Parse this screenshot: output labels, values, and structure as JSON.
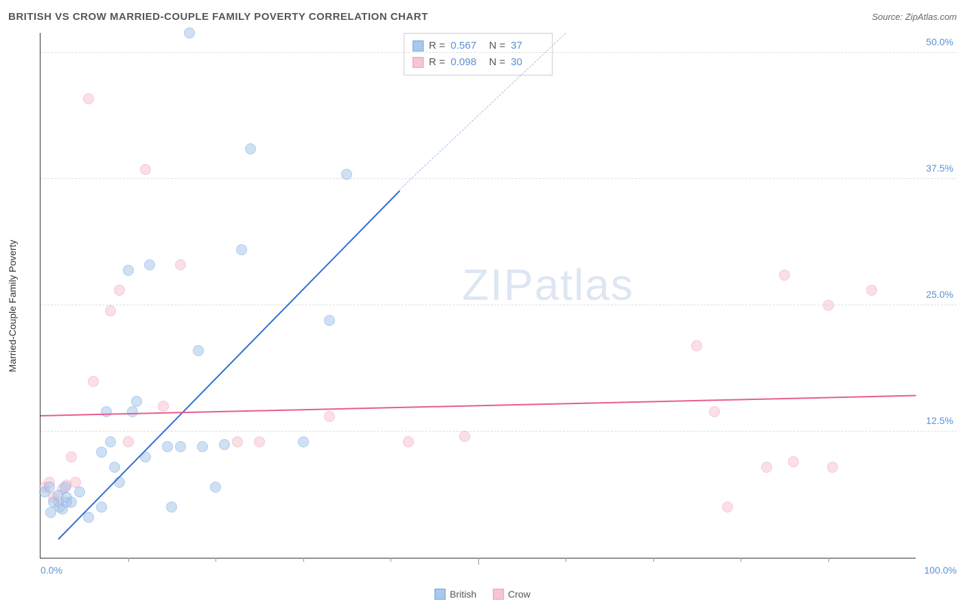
{
  "title": "BRITISH VS CROW MARRIED-COUPLE FAMILY POVERTY CORRELATION CHART",
  "source": "Source: ZipAtlas.com",
  "y_axis_label": "Married-Couple Family Poverty",
  "watermark": {
    "zip": "ZIP",
    "atlas": "atlas"
  },
  "chart": {
    "type": "scatter",
    "xlim": [
      0,
      100
    ],
    "ylim": [
      0,
      52
    ],
    "x_ticks_minor": [
      10,
      20,
      30,
      40,
      50,
      60,
      70,
      80,
      90
    ],
    "x_tick_labels": [
      {
        "pos": 0,
        "text": "0.0%",
        "align": "left"
      },
      {
        "pos": 100,
        "text": "100.0%",
        "align": "right"
      }
    ],
    "y_ticks": [
      {
        "pos": 12.5,
        "text": "12.5%"
      },
      {
        "pos": 25.0,
        "text": "25.0%"
      },
      {
        "pos": 37.5,
        "text": "37.5%"
      },
      {
        "pos": 50.0,
        "text": "50.0%"
      }
    ],
    "grid_color": "#dddddd",
    "axis_color": "#333333",
    "background_color": "#ffffff",
    "marker_radius": 8,
    "marker_opacity": 0.55,
    "series": [
      {
        "name": "British",
        "fill_color": "#a8c8ec",
        "stroke_color": "#6fa3de",
        "trend_color": "#2f6fd0",
        "trend_dash_color": "#9fbfe0",
        "r_label": "R =",
        "r_value": "0.567",
        "n_label": "N =",
        "n_value": "37",
        "trend": {
          "x1": 2,
          "y1": 2,
          "x2": 41,
          "y2": 36.5,
          "extend_x2": 60,
          "extend_y2": 52
        },
        "points": [
          [
            0.5,
            6.5
          ],
          [
            1,
            7
          ],
          [
            1.2,
            4.5
          ],
          [
            1.5,
            5.5
          ],
          [
            2,
            6.2
          ],
          [
            2.2,
            5
          ],
          [
            2.5,
            4.8
          ],
          [
            2.8,
            7
          ],
          [
            3,
            5.5
          ],
          [
            3,
            6
          ],
          [
            3.5,
            5.5
          ],
          [
            4.5,
            6.5
          ],
          [
            5.5,
            4
          ],
          [
            7,
            10.5
          ],
          [
            7.5,
            14.5
          ],
          [
            7,
            5
          ],
          [
            8,
            11.5
          ],
          [
            8.5,
            9
          ],
          [
            9,
            7.5
          ],
          [
            10,
            28.5
          ],
          [
            10.5,
            14.5
          ],
          [
            11,
            15.5
          ],
          [
            12,
            10
          ],
          [
            12.5,
            29
          ],
          [
            14.5,
            11
          ],
          [
            15,
            5
          ],
          [
            16,
            11
          ],
          [
            17,
            52
          ],
          [
            18,
            20.5
          ],
          [
            18.5,
            11
          ],
          [
            20,
            7
          ],
          [
            21,
            11.2
          ],
          [
            23,
            30.5
          ],
          [
            24,
            40.5
          ],
          [
            30,
            11.5
          ],
          [
            33,
            23.5
          ],
          [
            35,
            38
          ]
        ]
      },
      {
        "name": "Crow",
        "fill_color": "#f7c6d3",
        "stroke_color": "#ec9cb5",
        "trend_color": "#e75b8d",
        "r_label": "R =",
        "r_value": "0.098",
        "n_label": "N =",
        "n_value": "30",
        "trend": {
          "x1": 0,
          "y1": 14.2,
          "x2": 100,
          "y2": 16.2
        },
        "points": [
          [
            0.5,
            7
          ],
          [
            1,
            7.5
          ],
          [
            1.5,
            6
          ],
          [
            2,
            5.5
          ],
          [
            2.5,
            6.8
          ],
          [
            3,
            7.2
          ],
          [
            3.5,
            10
          ],
          [
            4,
            7.5
          ],
          [
            5.5,
            45.5
          ],
          [
            6,
            17.5
          ],
          [
            8,
            24.5
          ],
          [
            9,
            26.5
          ],
          [
            10,
            11.5
          ],
          [
            12,
            38.5
          ],
          [
            14,
            15
          ],
          [
            16,
            29
          ],
          [
            22.5,
            11.5
          ],
          [
            25,
            11.5
          ],
          [
            33,
            14
          ],
          [
            42,
            11.5
          ],
          [
            48.5,
            12
          ],
          [
            75,
            21
          ],
          [
            77,
            14.5
          ],
          [
            78.5,
            5
          ],
          [
            83,
            9
          ],
          [
            85,
            28
          ],
          [
            86,
            9.5
          ],
          [
            90,
            25
          ],
          [
            90.5,
            9
          ],
          [
            95,
            26.5
          ]
        ]
      }
    ]
  },
  "legend": [
    {
      "label": "British",
      "fill": "#a8c8ec",
      "stroke": "#6fa3de"
    },
    {
      "label": "Crow",
      "fill": "#f7c6d3",
      "stroke": "#ec9cb5"
    }
  ]
}
